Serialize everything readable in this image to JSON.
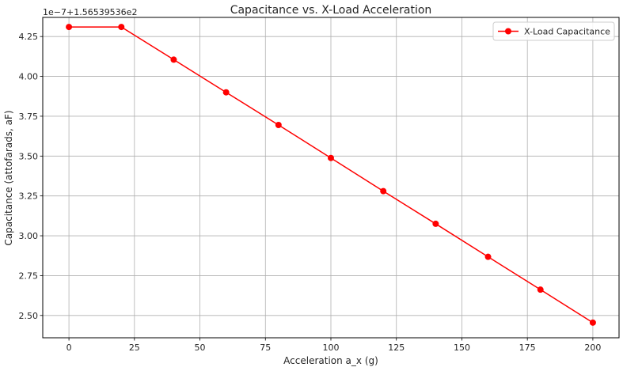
{
  "chart_data": {
    "type": "line",
    "title": "Capacitance vs. X-Load Acceleration",
    "xlabel": "Acceleration a_x (g)",
    "ylabel": "Capacitance (attofarads, aF)",
    "y_offset_label": "1e−7+1.56539536e2",
    "xlim": [
      -10,
      210
    ],
    "ylim": [
      2.36,
      4.37
    ],
    "xticks": [
      0,
      25,
      50,
      75,
      100,
      125,
      150,
      175,
      200
    ],
    "xtick_labels": [
      "0",
      "25",
      "50",
      "75",
      "100",
      "125",
      "150",
      "175",
      "200"
    ],
    "yticks": [
      2.5,
      2.75,
      3.0,
      3.25,
      3.5,
      3.75,
      4.0,
      4.25
    ],
    "ytick_labels": [
      "2.50",
      "2.75",
      "3.00",
      "3.25",
      "3.50",
      "3.75",
      "4.00",
      "4.25"
    ],
    "grid": true,
    "legend_position": "top-right",
    "series": [
      {
        "name": "X-Load Capacitance",
        "color": "#ff0000",
        "marker": "circle",
        "x": [
          0,
          20,
          40,
          60,
          80,
          100,
          120,
          140,
          160,
          180,
          200
        ],
        "y": [
          4.31,
          4.31,
          4.105,
          3.9,
          3.695,
          3.488,
          3.28,
          3.075,
          2.868,
          2.662,
          2.455
        ]
      }
    ]
  }
}
